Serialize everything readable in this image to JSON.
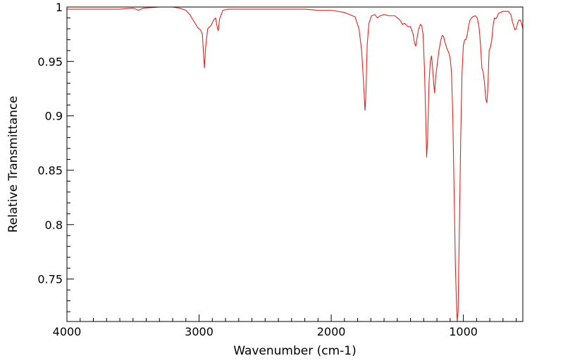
{
  "chart_data": {
    "type": "line",
    "title": "",
    "xlabel": "Wavenumber (cm-1)",
    "ylabel": "Relative Transmittance",
    "xlim": [
      4000,
      550
    ],
    "ylim": [
      0.711,
      1.0
    ],
    "x_reversed": true,
    "grid": false,
    "x_ticks": [
      {
        "value": 4000,
        "label": "4000"
      },
      {
        "value": 3000,
        "label": "3000"
      },
      {
        "value": 2000,
        "label": "2000"
      },
      {
        "value": 1000,
        "label": "1000"
      }
    ],
    "y_ticks": [
      {
        "value": 1.0,
        "label": "1"
      },
      {
        "value": 0.95,
        "label": "0.95"
      },
      {
        "value": 0.9,
        "label": "0.9"
      },
      {
        "value": 0.85,
        "label": "0.85"
      },
      {
        "value": 0.8,
        "label": "0.8"
      },
      {
        "value": 0.75,
        "label": "0.75"
      }
    ],
    "series": [
      {
        "color": "#e8211d",
        "points": [
          [
            4000,
            0.998
          ],
          [
            3800,
            0.998
          ],
          [
            3600,
            0.998
          ],
          [
            3500,
            0.999
          ],
          [
            3460,
            0.997
          ],
          [
            3420,
            0.999
          ],
          [
            3300,
            1.0
          ],
          [
            3200,
            1.0
          ],
          [
            3150,
            0.999
          ],
          [
            3100,
            0.997
          ],
          [
            3070,
            0.993
          ],
          [
            3040,
            0.987
          ],
          [
            3010,
            0.981
          ],
          [
            2990,
            0.979
          ],
          [
            2975,
            0.975
          ],
          [
            2960,
            0.944
          ],
          [
            2950,
            0.963
          ],
          [
            2935,
            0.98
          ],
          [
            2910,
            0.983
          ],
          [
            2890,
            0.988
          ],
          [
            2875,
            0.99
          ],
          [
            2862,
            0.981
          ],
          [
            2855,
            0.978
          ],
          [
            2845,
            0.989
          ],
          [
            2820,
            0.997
          ],
          [
            2780,
            0.998
          ],
          [
            2600,
            0.998
          ],
          [
            2400,
            0.998
          ],
          [
            2200,
            0.998
          ],
          [
            2100,
            0.997
          ],
          [
            2000,
            0.997
          ],
          [
            1900,
            0.995
          ],
          [
            1820,
            0.991
          ],
          [
            1790,
            0.98
          ],
          [
            1770,
            0.96
          ],
          [
            1755,
            0.93
          ],
          [
            1745,
            0.905
          ],
          [
            1738,
            0.918
          ],
          [
            1728,
            0.965
          ],
          [
            1715,
            0.985
          ],
          [
            1695,
            0.992
          ],
          [
            1670,
            0.993
          ],
          [
            1650,
            0.99
          ],
          [
            1630,
            0.992
          ],
          [
            1600,
            0.993
          ],
          [
            1560,
            0.992
          ],
          [
            1520,
            0.992
          ],
          [
            1480,
            0.988
          ],
          [
            1460,
            0.984
          ],
          [
            1445,
            0.985
          ],
          [
            1420,
            0.982
          ],
          [
            1400,
            0.982
          ],
          [
            1380,
            0.975
          ],
          [
            1370,
            0.967
          ],
          [
            1360,
            0.964
          ],
          [
            1350,
            0.972
          ],
          [
            1340,
            0.979
          ],
          [
            1325,
            0.984
          ],
          [
            1315,
            0.983
          ],
          [
            1305,
            0.975
          ],
          [
            1295,
            0.945
          ],
          [
            1285,
            0.9
          ],
          [
            1278,
            0.862
          ],
          [
            1270,
            0.88
          ],
          [
            1260,
            0.93
          ],
          [
            1250,
            0.95
          ],
          [
            1242,
            0.955
          ],
          [
            1235,
            0.948
          ],
          [
            1225,
            0.93
          ],
          [
            1218,
            0.921
          ],
          [
            1210,
            0.935
          ],
          [
            1200,
            0.945
          ],
          [
            1185,
            0.96
          ],
          [
            1170,
            0.97
          ],
          [
            1160,
            0.974
          ],
          [
            1150,
            0.973
          ],
          [
            1140,
            0.968
          ],
          [
            1125,
            0.962
          ],
          [
            1110,
            0.958
          ],
          [
            1100,
            0.953
          ],
          [
            1090,
            0.94
          ],
          [
            1080,
            0.9
          ],
          [
            1070,
            0.83
          ],
          [
            1060,
            0.76
          ],
          [
            1050,
            0.72
          ],
          [
            1046,
            0.711
          ],
          [
            1040,
            0.72
          ],
          [
            1030,
            0.8
          ],
          [
            1020,
            0.88
          ],
          [
            1010,
            0.94
          ],
          [
            1000,
            0.965
          ],
          [
            990,
            0.97
          ],
          [
            980,
            0.97
          ],
          [
            970,
            0.975
          ],
          [
            960,
            0.983
          ],
          [
            950,
            0.988
          ],
          [
            930,
            0.991
          ],
          [
            910,
            0.992
          ],
          [
            895,
            0.99
          ],
          [
            880,
            0.98
          ],
          [
            870,
            0.965
          ],
          [
            860,
            0.944
          ],
          [
            850,
            0.94
          ],
          [
            840,
            0.93
          ],
          [
            830,
            0.915
          ],
          [
            822,
            0.912
          ],
          [
            815,
            0.925
          ],
          [
            805,
            0.96
          ],
          [
            795,
            0.963
          ],
          [
            785,
            0.97
          ],
          [
            775,
            0.983
          ],
          [
            765,
            0.99
          ],
          [
            755,
            0.989
          ],
          [
            745,
            0.991
          ],
          [
            735,
            0.994
          ],
          [
            720,
            0.995
          ],
          [
            700,
            0.996
          ],
          [
            680,
            0.996
          ],
          [
            660,
            0.996
          ],
          [
            640,
            0.993
          ],
          [
            630,
            0.987
          ],
          [
            620,
            0.983
          ],
          [
            610,
            0.979
          ],
          [
            600,
            0.98
          ],
          [
            590,
            0.985
          ],
          [
            580,
            0.988
          ],
          [
            570,
            0.988
          ],
          [
            560,
            0.985
          ],
          [
            550,
            0.98
          ]
        ]
      }
    ]
  }
}
